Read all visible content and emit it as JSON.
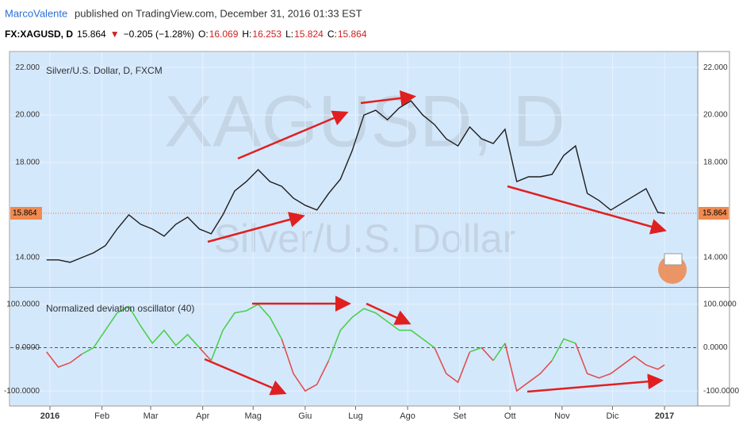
{
  "header": {
    "author": "MarcoValente",
    "published": "published on TradingView.com, December 31, 2016 01:33 EST",
    "symbol": "FX:XAGUSD, D",
    "last": "15.864",
    "arrow": "▼",
    "change": "−0.205 (−1.28%)",
    "o_label": "O:",
    "o": "16.069",
    "h_label": "H:",
    "h": "16.253",
    "l_label": "L:",
    "l": "15.824",
    "c_label": "C:",
    "c": "15.864"
  },
  "chart_data": [
    {
      "type": "line",
      "title": "Silver/U.S. Dollar, D, FXCM",
      "watermark": "XAGUSD, D",
      "watermark_sub": "Silver/U.S. Dollar",
      "last_price": 15.864,
      "x": [
        -2,
        5,
        12,
        19,
        26,
        33,
        40,
        47,
        54,
        61,
        68,
        75,
        82,
        89,
        96,
        103,
        110,
        117,
        124,
        131,
        138,
        145,
        152,
        159,
        166,
        173,
        180,
        187,
        194,
        201,
        208,
        215,
        222,
        229,
        236,
        243,
        250,
        257,
        264,
        271,
        278,
        285,
        292,
        299,
        306,
        313,
        320,
        327,
        334,
        341,
        348,
        355,
        362,
        366
      ],
      "series": [
        {
          "name": "XAGUSD",
          "color": "#1e1e1e",
          "values": [
            13.9,
            13.9,
            13.8,
            14.0,
            14.2,
            14.5,
            15.2,
            15.8,
            15.4,
            15.2,
            14.9,
            15.4,
            15.7,
            15.2,
            15.0,
            15.8,
            16.8,
            17.2,
            17.7,
            17.2,
            17.0,
            16.5,
            16.2,
            16.0,
            16.7,
            17.3,
            18.5,
            20.0,
            20.2,
            19.8,
            20.3,
            20.6,
            20.0,
            19.6,
            19.0,
            18.7,
            19.5,
            19.0,
            18.8,
            19.4,
            17.2,
            17.4,
            17.4,
            17.5,
            18.3,
            18.7,
            16.7,
            16.4,
            16.0,
            16.3,
            16.6,
            16.9,
            15.9,
            15.864
          ]
        }
      ],
      "xlim": [
        -23.6,
        385.8
      ],
      "xticks": [
        {
          "value": 0,
          "label": "2016"
        },
        {
          "value": 31,
          "label": "Feb"
        },
        {
          "value": 60,
          "label": "Mar"
        },
        {
          "value": 91,
          "label": "Apr"
        },
        {
          "value": 121,
          "label": "Mag"
        },
        {
          "value": 152,
          "label": "Giu"
        },
        {
          "value": 182,
          "label": "Lug"
        },
        {
          "value": 213,
          "label": "Ago"
        },
        {
          "value": 244,
          "label": "Set"
        },
        {
          "value": 274,
          "label": "Ott"
        },
        {
          "value": 305,
          "label": "Nov"
        },
        {
          "value": 335,
          "label": "Dic"
        },
        {
          "value": 366,
          "label": "2017"
        }
      ],
      "ylim": [
        12.76,
        22.64
      ],
      "yticks": [
        {
          "value": 14,
          "label": "14.000"
        },
        {
          "value": 18,
          "label": "18.000"
        },
        {
          "value": 20,
          "label": "20.000"
        },
        {
          "value": 22,
          "label": "22.000"
        }
      ],
      "grid": true
    },
    {
      "type": "line",
      "title": "Normalized deviation oscillator (40)",
      "x": [
        -2,
        5,
        12,
        19,
        26,
        33,
        40,
        47,
        54,
        61,
        68,
        75,
        82,
        89,
        96,
        103,
        110,
        117,
        124,
        131,
        138,
        145,
        152,
        159,
        166,
        173,
        180,
        187,
        194,
        201,
        208,
        215,
        222,
        229,
        236,
        243,
        250,
        257,
        264,
        271,
        278,
        285,
        292,
        299,
        306,
        313,
        320,
        327,
        334,
        341,
        348,
        355,
        362,
        366
      ],
      "series": [
        {
          "name": "Normalized deviation oscillator",
          "color": "#e05050",
          "color_up": "#4ccf4c",
          "values": [
            -10,
            -45,
            -35,
            -15,
            0,
            40,
            80,
            95,
            50,
            10,
            40,
            5,
            30,
            0,
            -30,
            40,
            80,
            85,
            100,
            70,
            20,
            -60,
            -100,
            -85,
            -30,
            40,
            70,
            90,
            80,
            60,
            40,
            40,
            20,
            0,
            -60,
            -80,
            -10,
            0,
            -30,
            10,
            -100,
            -80,
            -60,
            -30,
            20,
            10,
            -60,
            -70,
            -60,
            -40,
            -20,
            -40,
            -50,
            -40
          ]
        }
      ],
      "xlim": [
        -23.6,
        385.8
      ],
      "ylim": [
        -134.5,
        138
      ],
      "yticks": [
        {
          "value": -100,
          "label": "-100.0000"
        },
        {
          "value": 0,
          "label": "0.0000"
        },
        {
          "value": 100,
          "label": "100.0000"
        }
      ],
      "grid": true
    }
  ]
}
